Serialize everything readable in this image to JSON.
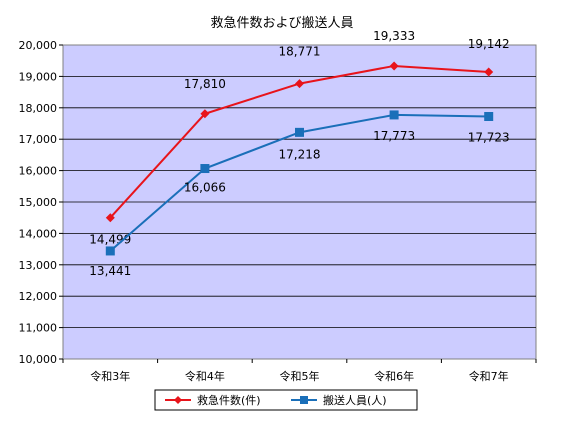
{
  "chart_data": {
    "type": "line",
    "title": "救急件数および搬送人員",
    "categories": [
      "令和3年",
      "令和4年",
      "令和5年",
      "令和6年",
      "令和7年"
    ],
    "y_ticks": [
      "10,000",
      "11,000",
      "12,000",
      "13,000",
      "14,000",
      "15,000",
      "16,000",
      "17,000",
      "18,000",
      "19,000",
      "20,000"
    ],
    "ylim": [
      10000,
      20000
    ],
    "grid": true,
    "legend_position": "bottom",
    "series": [
      {
        "name": "救急件数(件)",
        "values": [
          14499,
          17810,
          18771,
          19333,
          19142
        ],
        "labels": [
          "14,499",
          "17,810",
          "18,771",
          "19,333",
          "19,142"
        ],
        "color": "#e8141b",
        "marker": "diamond"
      },
      {
        "name": "搬送人員(人)",
        "values": [
          13441,
          16066,
          17218,
          17773,
          17723
        ],
        "labels": [
          "13,441",
          "16,066",
          "17,218",
          "17,773",
          "17,723"
        ],
        "color": "#1a6fb9",
        "marker": "square"
      }
    ],
    "plot_background": "#ccccff"
  }
}
